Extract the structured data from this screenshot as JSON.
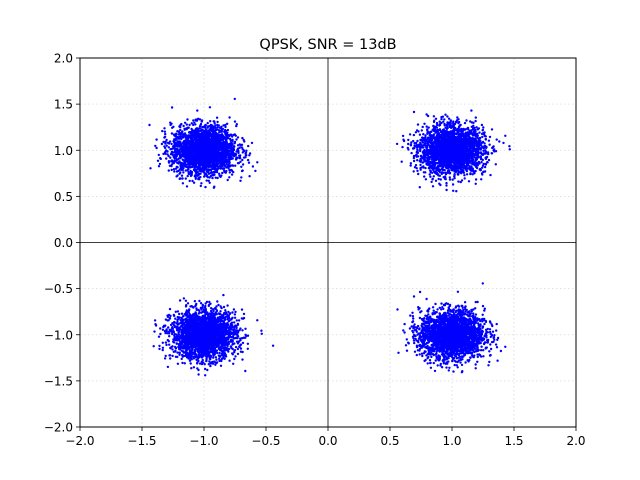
{
  "chart_data": {
    "type": "scatter",
    "title": "QPSK, SNR = 13dB",
    "xlabel": "",
    "ylabel": "",
    "xlim": [
      -2.0,
      2.0
    ],
    "ylim": [
      -2.0,
      2.0
    ],
    "x_ticks": [
      -2.0,
      -1.5,
      -1.0,
      -0.5,
      0.0,
      0.5,
      1.0,
      1.5,
      2.0
    ],
    "y_ticks": [
      -2.0,
      -1.5,
      -1.0,
      -0.5,
      0.0,
      0.5,
      1.0,
      1.5,
      2.0
    ],
    "x_tick_labels": [
      "−2.0",
      "−1.5",
      "−1.0",
      "−0.5",
      "0.0",
      "0.5",
      "1.0",
      "1.5",
      "2.0"
    ],
    "y_tick_labels": [
      "−2.0",
      "−1.5",
      "−1.0",
      "−0.5",
      "0.0",
      "0.5",
      "1.0",
      "1.5",
      "2.0"
    ],
    "grid": true,
    "axis_lines": {
      "x": 0.0,
      "y": 0.0
    },
    "marker_color": "#0000ff",
    "series": [
      {
        "constellation_points": [
          {
            "i": 1.0,
            "q": 1.0
          },
          {
            "i": -1.0,
            "q": 1.0
          },
          {
            "i": -1.0,
            "q": -1.0
          },
          {
            "i": 1.0,
            "q": -1.0
          }
        ],
        "noise_std": 0.13,
        "points_per_cluster": 2500
      }
    ]
  }
}
